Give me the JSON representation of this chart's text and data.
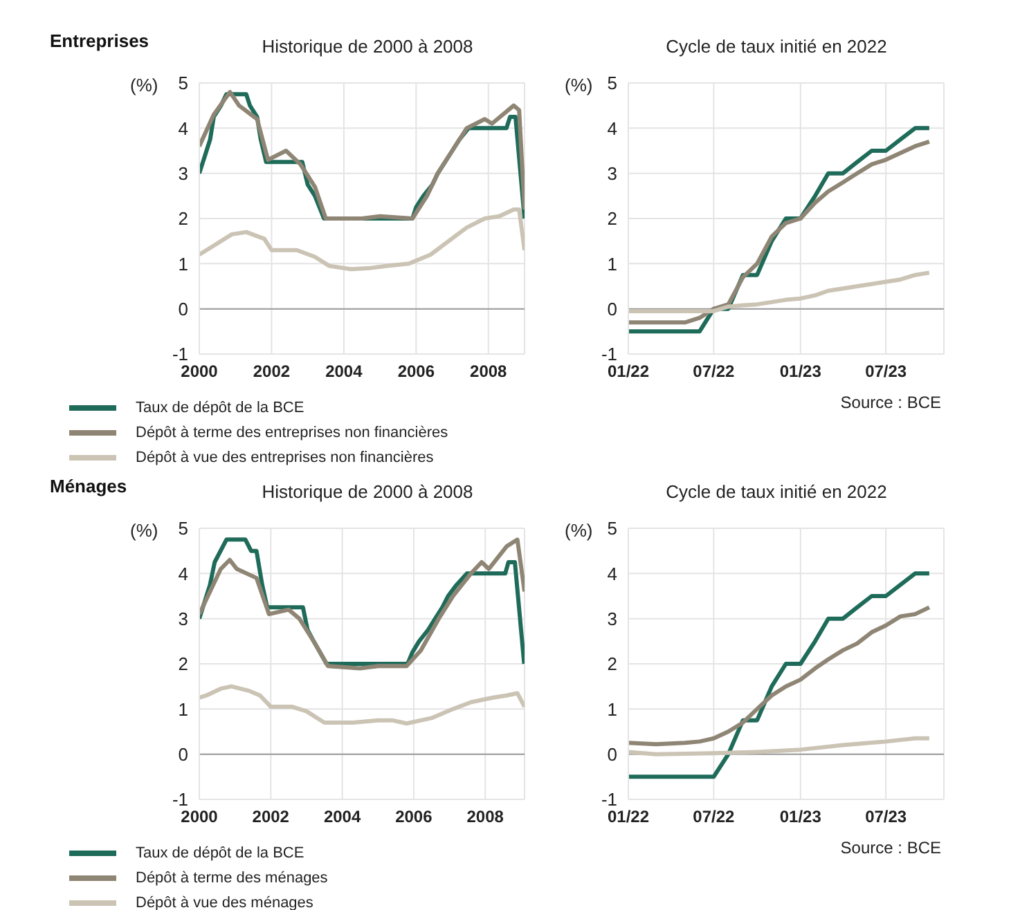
{
  "chart_data": [
    {
      "type": "line",
      "title": "Historique de 2000 à 2008",
      "ylabel": "(%)",
      "annotations": [
        "Entreprises"
      ],
      "xlim": [
        2000,
        2009
      ],
      "xticks": [
        2000,
        2002,
        2004,
        2006,
        2008
      ],
      "ylim": [
        -1,
        5
      ],
      "yticks": [
        -1,
        0,
        1,
        2,
        3,
        4,
        5
      ],
      "grid": true,
      "legend": "bottom",
      "ref_lines": [
        {
          "axis": "y",
          "value": 0,
          "color": "#9a9a9a"
        }
      ],
      "series": [
        {
          "name": "Taux de dépôt de la BCE",
          "color": "#1f6b5a",
          "x": [
            2000.0,
            2000.1,
            2000.2,
            2000.3,
            2000.4,
            2000.6,
            2000.75,
            2001.3,
            2001.4,
            2001.6,
            2001.7,
            2001.85,
            2002.85,
            2003.0,
            2003.2,
            2003.45,
            2005.9,
            2006.0,
            2006.2,
            2006.45,
            2006.6,
            2006.8,
            2007.0,
            2007.2,
            2007.45,
            2008.5,
            2008.6,
            2008.75,
            2009.0
          ],
          "values": [
            3.0,
            3.25,
            3.5,
            3.75,
            4.25,
            4.5,
            4.75,
            4.75,
            4.5,
            4.25,
            3.75,
            3.25,
            3.25,
            2.75,
            2.5,
            2.0,
            2.0,
            2.25,
            2.5,
            2.75,
            3.0,
            3.25,
            3.5,
            3.75,
            4.0,
            4.0,
            4.25,
            4.25,
            2.0
          ]
        },
        {
          "name": "Dépôt à terme des entreprises non financières",
          "color": "#8f8574",
          "x": [
            2000.0,
            2000.4,
            2000.85,
            2001.1,
            2001.6,
            2001.9,
            2002.4,
            2002.8,
            2003.2,
            2003.5,
            2004.5,
            2005.0,
            2005.9,
            2006.3,
            2006.6,
            2007.0,
            2007.4,
            2007.9,
            2008.1,
            2008.7,
            2008.85,
            2009.0
          ],
          "values": [
            3.6,
            4.3,
            4.8,
            4.5,
            4.2,
            3.3,
            3.5,
            3.2,
            2.7,
            2.0,
            2.0,
            2.05,
            2.0,
            2.5,
            3.0,
            3.5,
            4.0,
            4.2,
            4.1,
            4.5,
            4.4,
            2.2
          ]
        },
        {
          "name": "Dépôt à vue des entreprises non financières",
          "color": "#cbc4b5",
          "x": [
            2000.0,
            2000.5,
            2000.9,
            2001.3,
            2001.8,
            2002.0,
            2002.7,
            2003.2,
            2003.6,
            2004.2,
            2004.7,
            2005.2,
            2005.8,
            2006.4,
            2006.9,
            2007.4,
            2007.9,
            2008.3,
            2008.7,
            2008.85,
            2009.0
          ],
          "values": [
            1.2,
            1.45,
            1.65,
            1.7,
            1.55,
            1.3,
            1.3,
            1.15,
            0.95,
            0.88,
            0.9,
            0.95,
            1.0,
            1.2,
            1.5,
            1.8,
            2.0,
            2.05,
            2.2,
            2.2,
            1.3
          ]
        }
      ]
    },
    {
      "type": "line",
      "title": "Cycle de taux initié en 2022",
      "ylabel": "(%)",
      "annotations": [
        "Source : BCE"
      ],
      "xlim": [
        "2022-01",
        "2023-11"
      ],
      "xticks": [
        {
          "value": "2022-01",
          "label": "01/22"
        },
        {
          "value": "2022-07",
          "label": "07/22"
        },
        {
          "value": "2023-01",
          "label": "01/23"
        },
        {
          "value": "2023-07",
          "label": "07/23"
        }
      ],
      "ylim": [
        -1,
        5
      ],
      "yticks": [
        -1,
        0,
        1,
        2,
        3,
        4,
        5
      ],
      "grid": true,
      "ref_lines": [
        {
          "axis": "y",
          "value": 0,
          "color": "#9a9a9a"
        }
      ],
      "series": [
        {
          "color": "#1f6b5a",
          "x": [
            "2022-01",
            "2022-06",
            "2022-07",
            "2022-08",
            "2022-09",
            "2022-10",
            "2022-11",
            "2022-12",
            "2023-01",
            "2023-02",
            "2023-03",
            "2023-04",
            "2023-05",
            "2023-06",
            "2023-07",
            "2023-08",
            "2023-09",
            "2023-10"
          ],
          "values": [
            -0.5,
            -0.5,
            0,
            0,
            0.75,
            0.75,
            1.5,
            2.0,
            2.0,
            2.5,
            3.0,
            3.0,
            3.25,
            3.5,
            3.5,
            3.75,
            4.0,
            4.0
          ]
        },
        {
          "color": "#8f8574",
          "x": [
            "2022-01",
            "2022-05",
            "2022-06",
            "2022-07",
            "2022-08",
            "2022-09",
            "2022-10",
            "2022-11",
            "2022-12",
            "2023-01",
            "2023-02",
            "2023-03",
            "2023-04",
            "2023-05",
            "2023-06",
            "2023-07",
            "2023-08",
            "2023-09",
            "2023-10"
          ],
          "values": [
            -0.3,
            -0.3,
            -0.2,
            0.0,
            0.1,
            0.7,
            1.0,
            1.6,
            1.9,
            2.0,
            2.35,
            2.6,
            2.8,
            3.0,
            3.2,
            3.3,
            3.45,
            3.6,
            3.7
          ]
        },
        {
          "color": "#cbc4b5",
          "x": [
            "2022-01",
            "2022-07",
            "2022-08",
            "2022-09",
            "2022-10",
            "2022-11",
            "2022-12",
            "2023-01",
            "2023-02",
            "2023-03",
            "2023-04",
            "2023-05",
            "2023-06",
            "2023-07",
            "2023-08",
            "2023-09",
            "2023-10"
          ],
          "values": [
            -0.05,
            -0.05,
            0.05,
            0.08,
            0.1,
            0.15,
            0.2,
            0.23,
            0.3,
            0.4,
            0.45,
            0.5,
            0.55,
            0.6,
            0.65,
            0.75,
            0.8
          ]
        }
      ]
    },
    {
      "type": "line",
      "title": "Historique de 2000 à 2008",
      "ylabel": "(%)",
      "annotations": [
        "Ménages"
      ],
      "xlim": [
        2000,
        2009.1
      ],
      "xticks": [
        2000,
        2002,
        2004,
        2006,
        2008
      ],
      "ylim": [
        -1,
        5
      ],
      "yticks": [
        -1,
        0,
        1,
        2,
        3,
        4,
        5
      ],
      "grid": true,
      "legend": "bottom",
      "ref_lines": [
        {
          "axis": "y",
          "value": 0,
          "color": "#9a9a9a"
        }
      ],
      "series": [
        {
          "name": "Taux de dépôt de la BCE",
          "color": "#1f6b5a",
          "x": [
            2000.0,
            2000.3,
            2000.43,
            2000.76,
            2001.29,
            2001.45,
            2001.6,
            2001.76,
            2001.9,
            2002.9,
            2003.03,
            2003.2,
            2003.56,
            2005.83,
            2005.96,
            2006.15,
            2006.4,
            2006.6,
            2006.8,
            2006.96,
            2007.2,
            2007.49,
            2008.56,
            2008.65,
            2008.83,
            2009.09
          ],
          "values": [
            3.0,
            3.75,
            4.25,
            4.75,
            4.75,
            4.5,
            4.5,
            3.75,
            3.25,
            3.25,
            2.75,
            2.5,
            2.0,
            2.0,
            2.25,
            2.5,
            2.75,
            3.0,
            3.25,
            3.5,
            3.75,
            4.0,
            4.0,
            4.25,
            4.25,
            2.0
          ]
        },
        {
          "name": "Dépôt à terme des ménages",
          "color": "#8f8574",
          "x": [
            2000.0,
            2000.3,
            2000.6,
            2000.85,
            2001.05,
            2001.6,
            2001.95,
            2002.5,
            2002.8,
            2003.2,
            2003.6,
            2004.5,
            2005.0,
            2005.8,
            2006.2,
            2006.7,
            2007.1,
            2007.6,
            2007.9,
            2008.1,
            2008.6,
            2008.9,
            2009.1
          ],
          "values": [
            3.1,
            3.6,
            4.1,
            4.3,
            4.1,
            3.9,
            3.1,
            3.2,
            3.0,
            2.5,
            1.95,
            1.9,
            1.95,
            1.95,
            2.3,
            3.0,
            3.5,
            4.0,
            4.25,
            4.1,
            4.6,
            4.75,
            3.6
          ]
        },
        {
          "name": "Dépôt à vue des ménages",
          "color": "#cbc4b5",
          "x": [
            2000.0,
            2000.2,
            2000.6,
            2000.9,
            2001.4,
            2001.7,
            2002.0,
            2002.6,
            2003.0,
            2003.5,
            2004.3,
            2005.0,
            2005.4,
            2005.8,
            2006.5,
            2007.1,
            2007.6,
            2008.2,
            2008.6,
            2008.9,
            2009.1
          ],
          "values": [
            1.25,
            1.3,
            1.45,
            1.5,
            1.4,
            1.3,
            1.05,
            1.05,
            0.95,
            0.7,
            0.7,
            0.75,
            0.75,
            0.68,
            0.8,
            1.0,
            1.15,
            1.25,
            1.3,
            1.35,
            1.05
          ]
        }
      ]
    },
    {
      "type": "line",
      "title": "Cycle de taux initié en 2022",
      "ylabel": "(%)",
      "annotations": [
        "Source : BCE"
      ],
      "xlim": [
        "2022-01",
        "2023-11"
      ],
      "xticks": [
        {
          "value": "2022-01",
          "label": "01/22"
        },
        {
          "value": "2022-07",
          "label": "07/22"
        },
        {
          "value": "2023-01",
          "label": "01/23"
        },
        {
          "value": "2023-07",
          "label": "07/23"
        }
      ],
      "ylim": [
        -1,
        5
      ],
      "yticks": [
        -1,
        0,
        1,
        2,
        3,
        4,
        5
      ],
      "grid": true,
      "ref_lines": [
        {
          "axis": "y",
          "value": 0,
          "color": "#9a9a9a"
        }
      ],
      "series": [
        {
          "color": "#1f6b5a",
          "x": [
            "2022-01",
            "2022-06",
            "2022-07",
            "2022-08",
            "2022-09",
            "2022-10",
            "2022-11",
            "2022-12",
            "2023-01",
            "2023-02",
            "2023-03",
            "2023-04",
            "2023-05",
            "2023-06",
            "2023-07",
            "2023-08",
            "2023-09",
            "2023-10"
          ],
          "values": [
            -0.5,
            -0.5,
            -0.5,
            0,
            0.75,
            0.75,
            1.5,
            2.0,
            2.0,
            2.5,
            3.0,
            3.0,
            3.25,
            3.5,
            3.5,
            3.75,
            4.0,
            4.0
          ]
        },
        {
          "color": "#8f8574",
          "x": [
            "2022-01",
            "2022-03",
            "2022-05",
            "2022-06",
            "2022-07",
            "2022-08",
            "2022-09",
            "2022-10",
            "2022-11",
            "2022-12",
            "2023-01",
            "2023-02",
            "2023-03",
            "2023-04",
            "2023-05",
            "2023-06",
            "2023-07",
            "2023-08",
            "2023-09",
            "2023-10"
          ],
          "values": [
            0.25,
            0.22,
            0.25,
            0.28,
            0.35,
            0.5,
            0.7,
            1.0,
            1.3,
            1.5,
            1.65,
            1.9,
            2.1,
            2.3,
            2.45,
            2.7,
            2.85,
            3.05,
            3.1,
            3.25
          ]
        },
        {
          "color": "#cbc4b5",
          "x": [
            "2022-01",
            "2022-03",
            "2022-07",
            "2022-10",
            "2023-01",
            "2023-04",
            "2023-07",
            "2023-09",
            "2023-10"
          ],
          "values": [
            0.05,
            0.0,
            0.02,
            0.05,
            0.1,
            0.2,
            0.28,
            0.35,
            0.35
          ]
        }
      ]
    }
  ]
}
